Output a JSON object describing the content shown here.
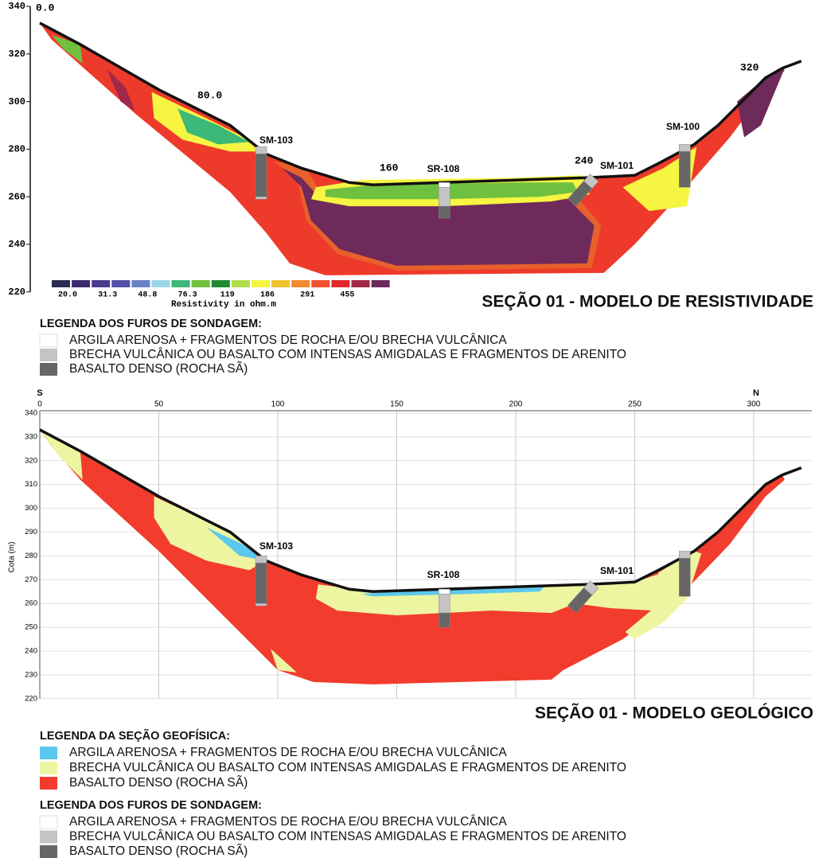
{
  "resistivity_section": {
    "title": "SEÇÃO 01 - MODELO DE RESISTIVIDADE",
    "yticks": [
      220,
      240,
      260,
      280,
      300,
      320,
      340
    ],
    "distance_labels": [
      "0.0",
      "80.0",
      "160",
      "240",
      "320"
    ],
    "boreholes": [
      "SM-103",
      "SR-108",
      "SM-101",
      "SM-100"
    ],
    "colorbar": {
      "colors": [
        "#2a2a50",
        "#3a2a70",
        "#4a3a8e",
        "#5050a8",
        "#6a80c8",
        "#9ad8e8",
        "#3cb878",
        "#70c040",
        "#1f8a30",
        "#b0dc4a",
        "#f5f542",
        "#f0c030",
        "#f08a30",
        "#f05030",
        "#e02828",
        "#a02848",
        "#6e2a5a"
      ],
      "labels": [
        "20.0",
        "31.3",
        "48.8",
        "76.3",
        "119",
        "186",
        "291",
        "455"
      ],
      "title": "Resistivity in ohm.m"
    }
  },
  "drill_legend_1": {
    "title": "LEGENDA DOS FUROS DE SONDAGEM:",
    "items": [
      {
        "label": "ARGILA ARENOSA + FRAGMENTOS DE ROCHA E/OU BRECHA VULCÂNICA",
        "color": "#ffffff"
      },
      {
        "label": "BRECHA VULCÂNICA  OU BASALTO COM INTENSAS AMIGDALAS E FRAGMENTOS DE ARENITO",
        "color": "#c4c4c4"
      },
      {
        "label": "BASALTO DENSO (ROCHA SÃ)",
        "color": "#666666"
      }
    ]
  },
  "geological_section": {
    "title": "SEÇÃO 01 - MODELO GEOLÓGICO",
    "y_label": "Cota (m)",
    "direction_left": "S",
    "direction_right": "N",
    "xticks": [
      0,
      50,
      100,
      150,
      200,
      250,
      300
    ],
    "yticks": [
      220,
      230,
      240,
      250,
      260,
      270,
      280,
      290,
      300,
      310,
      320,
      330,
      340
    ],
    "boreholes": [
      "SM-103",
      "SR-108",
      "SM-101"
    ]
  },
  "geophysical_legend": {
    "title": "LEGENDA DA SEÇÃO GEOFÍSICA:",
    "items": [
      {
        "label": "ARGILA ARENOSA + FRAGMENTOS DE ROCHA E/OU BRECHA VULCÂNICA",
        "color": "#5cc8ee"
      },
      {
        "label": "BRECHA VULCÂNICA  OU BASALTO COM INTENSAS AMIGDALAS E FRAGMENTOS DE ARENITO",
        "color": "#eef5a0"
      },
      {
        "label": "BASALTO DENSO (ROCHA SÃ)",
        "color": "#f23c2e"
      }
    ]
  },
  "drill_legend_2": {
    "title": "LEGENDA DOS FUROS DE SONDAGEM:",
    "items": [
      {
        "label": "ARGILA ARENOSA + FRAGMENTOS DE ROCHA E/OU BRECHA VULCÂNICA",
        "color": "#ffffff"
      },
      {
        "label": "BRECHA VULCÂNICA  OU BASALTO COM INTENSAS AMIGDALAS E FRAGMENTOS DE ARENITO",
        "color": "#c4c4c4"
      },
      {
        "label": "BASALTO DENSO (ROCHA SÃ)",
        "color": "#666666"
      }
    ]
  }
}
